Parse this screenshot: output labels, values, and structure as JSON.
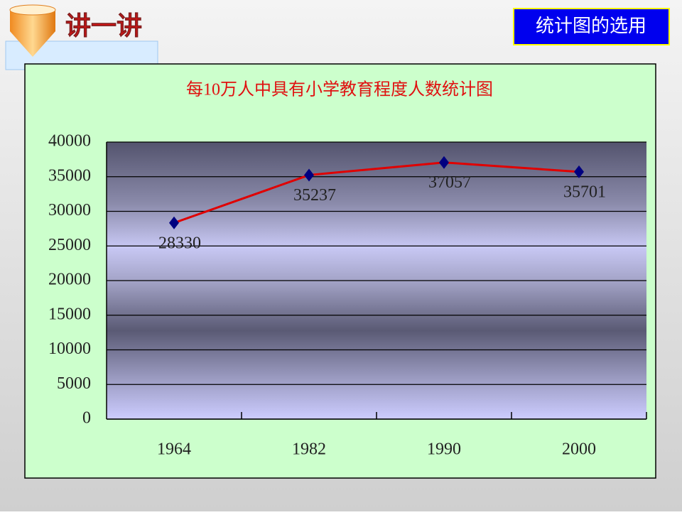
{
  "header": {
    "title": "讲一讲",
    "badge": "统计图的选用"
  },
  "chart_data": {
    "type": "line",
    "title": "每10万人中具有小学教育程度人数统计图",
    "categories": [
      "1964",
      "1982",
      "1990",
      "2000"
    ],
    "values": [
      28330,
      35237,
      37057,
      35701
    ],
    "color": "#e00000",
    "marker_color": "#000080",
    "ylim": [
      0,
      40000
    ],
    "yticks": [
      0,
      5000,
      10000,
      15000,
      20000,
      25000,
      30000,
      35000,
      40000
    ],
    "grid": true
  }
}
